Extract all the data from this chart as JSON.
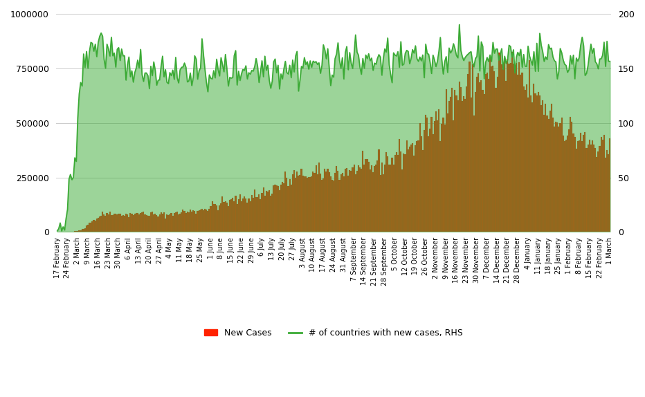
{
  "ylim_left": [
    0,
    1000000
  ],
  "ylim_right": [
    0,
    200
  ],
  "yticks_left": [
    0,
    250000,
    500000,
    750000,
    1000000
  ],
  "yticks_right": [
    0,
    50,
    100,
    150,
    200
  ],
  "bar_color": "#FF2200",
  "bar_edge_color": "#555555",
  "line_color": "#3BAA35",
  "fill_color": "#3BAA35",
  "background_color": "#FFFFFF",
  "grid_color": "#CCCCCC",
  "legend_labels": [
    "New Cases",
    "# of countries with new cases, RHS"
  ],
  "x_tick_labels": [
    "17 February",
    "24 February",
    "2 March",
    "9 March",
    "16 March",
    "23 March",
    "30 March",
    "6 April",
    "13 April",
    "20 April",
    "27 April",
    "4 May",
    "11 May",
    "18 May",
    "25 May",
    "1 June",
    "8 June",
    "15 June",
    "22 June",
    "29 June",
    "6 July",
    "13 July",
    "20 July",
    "27 July",
    "3 August",
    "10 August",
    "17 August",
    "24 August",
    "31 August",
    "7 September",
    "14 September",
    "21 September",
    "28 September",
    "5 October",
    "12 October",
    "19 October",
    "26 October",
    "2 November",
    "9 November",
    "16 November",
    "23 November",
    "30 November",
    "7 December",
    "14 December",
    "21 December",
    "28 December",
    "4 January",
    "11 January",
    "18 January",
    "25 January",
    "1 February",
    "8 February",
    "15 February",
    "22 February",
    "1 March"
  ],
  "x_tick_positions": [
    0,
    7,
    14,
    21,
    28,
    35,
    42,
    49,
    56,
    63,
    70,
    77,
    84,
    91,
    98,
    105,
    112,
    119,
    126,
    133,
    140,
    147,
    154,
    161,
    168,
    175,
    182,
    189,
    196,
    203,
    210,
    217,
    224,
    231,
    238,
    245,
    252,
    259,
    266,
    273,
    280,
    287,
    294,
    301,
    308,
    315,
    322,
    329,
    336,
    343,
    350,
    357,
    364,
    371,
    378
  ]
}
